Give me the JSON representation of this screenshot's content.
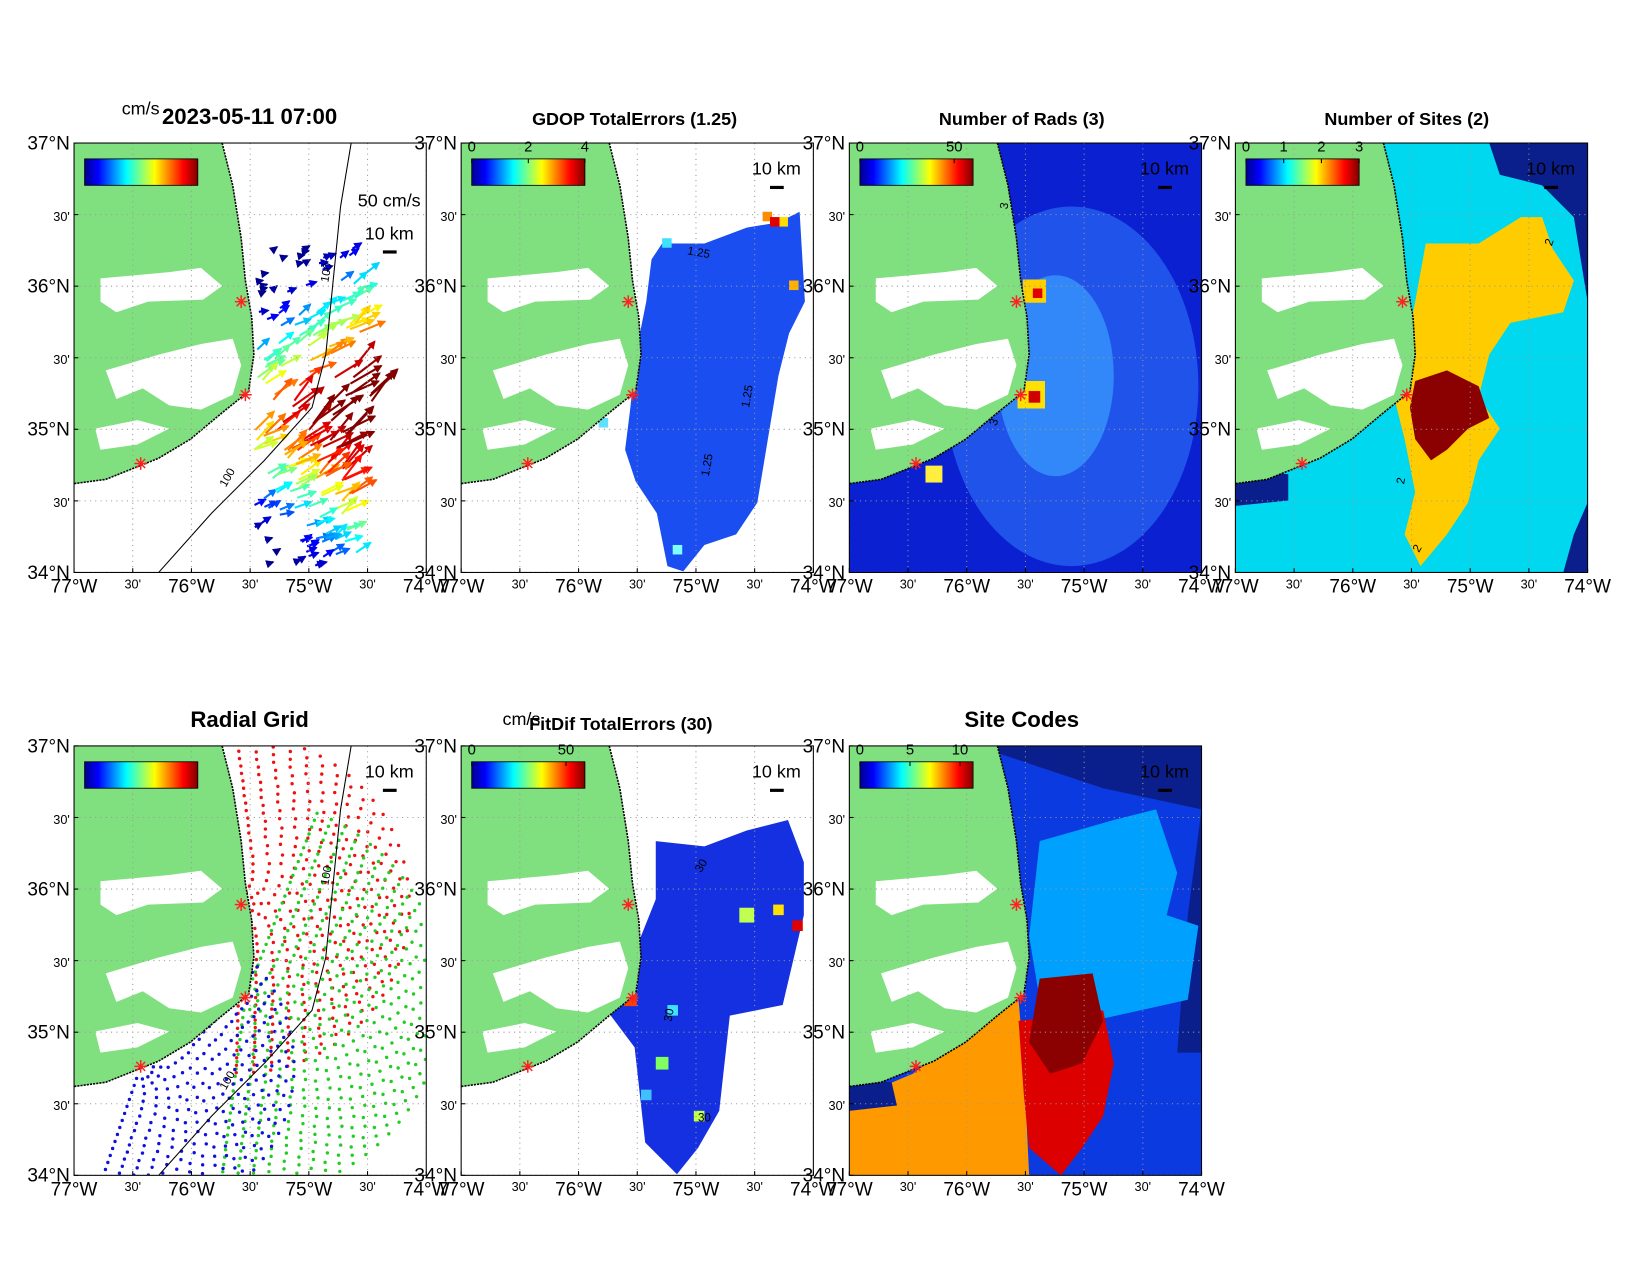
{
  "map_axes": {
    "lat_range": [
      34,
      37
    ],
    "lon_range": [
      -77,
      -74
    ],
    "lat_ticks": [
      {
        "value": 37,
        "label": "37°N"
      },
      {
        "value": 36.5,
        "label": "30'"
      },
      {
        "value": 36,
        "label": "36°N"
      },
      {
        "value": 35.5,
        "label": "30'"
      },
      {
        "value": 35,
        "label": "35°N"
      },
      {
        "value": 34.5,
        "label": "30'"
      },
      {
        "value": 34,
        "label": "34°N"
      }
    ],
    "lon_ticks": [
      {
        "value": -77,
        "label": "77°W"
      },
      {
        "value": -76.5,
        "label": "30'"
      },
      {
        "value": -76,
        "label": "76°W"
      },
      {
        "value": -75.5,
        "label": "30'"
      },
      {
        "value": -75,
        "label": "75°W"
      },
      {
        "value": -74.5,
        "label": "30'"
      },
      {
        "value": -74,
        "label": "74°W"
      }
    ]
  },
  "panels": [
    {
      "title": "2023-05-11 07:00",
      "colorbar_label": "cm/s",
      "vector_scale_label": "50 cm/s",
      "scale_label": "10 km",
      "contour_labels": [
        "100",
        "100"
      ]
    },
    {
      "title": "GDOP TotalErrors (1.25)",
      "colorbar_range": [
        0,
        4
      ],
      "colorbar_ticks": [
        0,
        2,
        4
      ],
      "scale_label": "10 km",
      "contour_labels": [
        "1.25",
        "1.25",
        "1.25"
      ]
    },
    {
      "title": "Number of Rads (3)",
      "colorbar_range": [
        0,
        60
      ],
      "colorbar_ticks": [
        0,
        50
      ],
      "scale_label": "10 km",
      "contour_labels": [
        "3",
        "3"
      ]
    },
    {
      "title": "Number of Sites (2)",
      "colorbar_range": [
        0,
        3
      ],
      "colorbar_ticks": [
        0,
        1,
        2,
        3
      ],
      "scale_label": "10 km",
      "contour_labels": [
        "2",
        "2",
        "2"
      ]
    },
    {
      "title": "Radial Grid",
      "scale_label": "10 km",
      "contour_labels": [
        "100",
        "100"
      ]
    },
    {
      "title": "FitDif TotalErrors (30)",
      "colorbar_label": "cm/s",
      "colorbar_range": [
        0,
        60
      ],
      "colorbar_ticks": [
        0,
        50
      ],
      "scale_label": "10 km",
      "contour_labels": [
        "30",
        "30",
        "30"
      ]
    },
    {
      "title": "Site Codes",
      "colorbar_range": [
        0,
        11.3
      ],
      "colorbar_ticks": [
        0,
        5,
        10
      ],
      "scale_label": "10 km",
      "contour_labels": []
    }
  ]
}
